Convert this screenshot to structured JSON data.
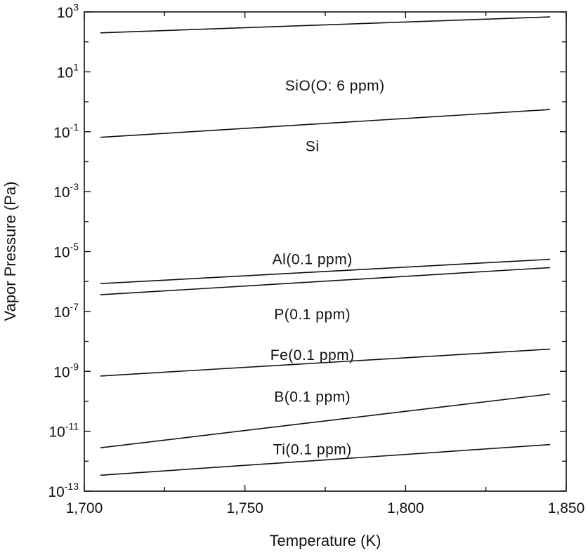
{
  "chart_data": {
    "type": "line",
    "title": "",
    "xlabel": "Temperature (K)",
    "ylabel": "Vapor Pressure (Pa)",
    "xlim": [
      1700,
      1850
    ],
    "ylim": [
      1e-13,
      1000
    ],
    "yscale": "log",
    "grid": false,
    "x_ticks": [
      {
        "value": 1700,
        "label": "1,700"
      },
      {
        "value": 1750,
        "label": "1,750"
      },
      {
        "value": 1800,
        "label": "1,800"
      },
      {
        "value": 1850,
        "label": "1,850"
      }
    ],
    "y_ticks": [
      {
        "value": 1e-13,
        "base": "10",
        "exp": "-13"
      },
      {
        "value": 1e-11,
        "base": "10",
        "exp": "-11"
      },
      {
        "value": 1e-09,
        "base": "10",
        "exp": "-9"
      },
      {
        "value": 1e-07,
        "base": "10",
        "exp": "-7"
      },
      {
        "value": 1e-05,
        "base": "10",
        "exp": "-5"
      },
      {
        "value": 0.001,
        "base": "10",
        "exp": "-3"
      },
      {
        "value": 0.1,
        "base": "10",
        "exp": "-1"
      },
      {
        "value": 10,
        "base": "10",
        "exp": "1"
      },
      {
        "value": 1000,
        "base": "10",
        "exp": "3"
      }
    ],
    "series": [
      {
        "name": "SiO(O: 6 ppm)",
        "x": [
          1705,
          1845
        ],
        "y": [
          200,
          680
        ],
        "label_at": [
          1778,
          3.5
        ]
      },
      {
        "name": "Si",
        "x": [
          1705,
          1845
        ],
        "y": [
          0.065,
          0.55
        ],
        "label_at": [
          1771,
          0.033
        ]
      },
      {
        "name": "Al(0.1 ppm)",
        "x": [
          1705,
          1845
        ],
        "y": [
          8.5e-07,
          5.5e-06
        ],
        "label_at": [
          1771,
          5.5e-06
        ]
      },
      {
        "name": "P(0.1 ppm)",
        "x": [
          1705,
          1845
        ],
        "y": [
          3.6e-07,
          2.9e-06
        ],
        "label_at": [
          1771,
          8e-08
        ]
      },
      {
        "name": "Fe(0.1 ppm)",
        "x": [
          1705,
          1845
        ],
        "y": [
          7e-10,
          5.5e-09
        ],
        "label_at": [
          1771,
          3.5e-09
        ]
      },
      {
        "name": "B(0.1 ppm)",
        "x": [
          1705,
          1845
        ],
        "y": [
          2.8e-12,
          1.75e-10
        ],
        "label_at": [
          1771,
          1.4e-10
        ]
      },
      {
        "name": "Ti(0.1 ppm)",
        "x": [
          1705,
          1845
        ],
        "y": [
          3.4e-13,
          3.6e-12
        ],
        "label_at": [
          1771,
          2.5e-12
        ]
      }
    ]
  }
}
